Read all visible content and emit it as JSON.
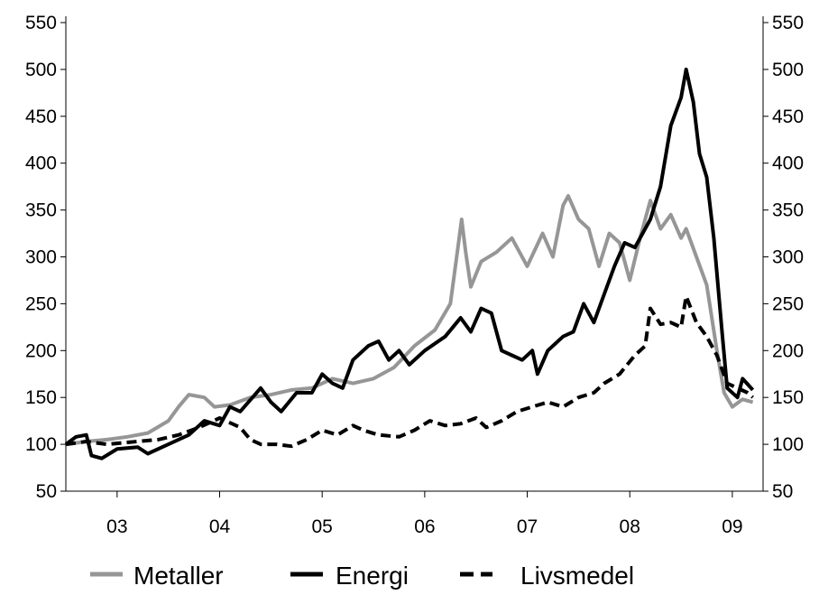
{
  "chart_data": {
    "type": "line",
    "title": "",
    "xlabel": "",
    "ylabel": "",
    "x_tick_labels": [
      "03",
      "04",
      "05",
      "06",
      "07",
      "08",
      "09"
    ],
    "xlim": [
      2002.5,
      2009.3
    ],
    "ylim": [
      50,
      550
    ],
    "yticks": [
      50,
      100,
      150,
      200,
      250,
      300,
      350,
      400,
      450,
      500,
      550
    ],
    "secondary_y_axis": true,
    "grid": false,
    "legend_position": "bottom",
    "series": [
      {
        "name": "Metaller",
        "color": "#969696",
        "style": "solid",
        "points": [
          [
            2002.5,
            100
          ],
          [
            2002.7,
            103
          ],
          [
            2002.9,
            105
          ],
          [
            2003.1,
            108
          ],
          [
            2003.3,
            112
          ],
          [
            2003.5,
            125
          ],
          [
            2003.6,
            140
          ],
          [
            2003.7,
            153
          ],
          [
            2003.85,
            150
          ],
          [
            2003.95,
            140
          ],
          [
            2004.1,
            142
          ],
          [
            2004.3,
            150
          ],
          [
            2004.5,
            153
          ],
          [
            2004.7,
            158
          ],
          [
            2004.9,
            160
          ],
          [
            2005.1,
            170
          ],
          [
            2005.3,
            165
          ],
          [
            2005.5,
            170
          ],
          [
            2005.7,
            182
          ],
          [
            2005.9,
            205
          ],
          [
            2006.1,
            222
          ],
          [
            2006.25,
            250
          ],
          [
            2006.33,
            315
          ],
          [
            2006.36,
            340
          ],
          [
            2006.4,
            305
          ],
          [
            2006.45,
            268
          ],
          [
            2006.55,
            295
          ],
          [
            2006.7,
            305
          ],
          [
            2006.85,
            320
          ],
          [
            2007.0,
            290
          ],
          [
            2007.15,
            325
          ],
          [
            2007.25,
            300
          ],
          [
            2007.35,
            355
          ],
          [
            2007.4,
            365
          ],
          [
            2007.5,
            340
          ],
          [
            2007.6,
            330
          ],
          [
            2007.7,
            290
          ],
          [
            2007.8,
            325
          ],
          [
            2007.9,
            315
          ],
          [
            2008.0,
            275
          ],
          [
            2008.1,
            320
          ],
          [
            2008.2,
            360
          ],
          [
            2008.3,
            330
          ],
          [
            2008.4,
            345
          ],
          [
            2008.5,
            320
          ],
          [
            2008.55,
            330
          ],
          [
            2008.65,
            300
          ],
          [
            2008.75,
            270
          ],
          [
            2008.85,
            200
          ],
          [
            2008.92,
            155
          ],
          [
            2009.0,
            140
          ],
          [
            2009.1,
            148
          ],
          [
            2009.2,
            145
          ]
        ]
      },
      {
        "name": "Energi",
        "color": "#000000",
        "style": "solid",
        "points": [
          [
            2002.5,
            100
          ],
          [
            2002.6,
            108
          ],
          [
            2002.7,
            110
          ],
          [
            2002.75,
            88
          ],
          [
            2002.85,
            85
          ],
          [
            2003.0,
            95
          ],
          [
            2003.2,
            97
          ],
          [
            2003.3,
            90
          ],
          [
            2003.5,
            100
          ],
          [
            2003.7,
            110
          ],
          [
            2003.85,
            125
          ],
          [
            2004.0,
            120
          ],
          [
            2004.1,
            140
          ],
          [
            2004.2,
            135
          ],
          [
            2004.4,
            160
          ],
          [
            2004.5,
            145
          ],
          [
            2004.6,
            135
          ],
          [
            2004.75,
            155
          ],
          [
            2004.9,
            155
          ],
          [
            2005.0,
            175
          ],
          [
            2005.1,
            165
          ],
          [
            2005.2,
            160
          ],
          [
            2005.3,
            190
          ],
          [
            2005.45,
            205
          ],
          [
            2005.55,
            210
          ],
          [
            2005.65,
            190
          ],
          [
            2005.75,
            200
          ],
          [
            2005.85,
            185
          ],
          [
            2006.0,
            200
          ],
          [
            2006.2,
            215
          ],
          [
            2006.35,
            235
          ],
          [
            2006.45,
            220
          ],
          [
            2006.55,
            245
          ],
          [
            2006.65,
            240
          ],
          [
            2006.75,
            200
          ],
          [
            2006.85,
            195
          ],
          [
            2006.95,
            190
          ],
          [
            2007.05,
            200
          ],
          [
            2007.1,
            175
          ],
          [
            2007.2,
            200
          ],
          [
            2007.35,
            215
          ],
          [
            2007.45,
            220
          ],
          [
            2007.55,
            250
          ],
          [
            2007.65,
            230
          ],
          [
            2007.75,
            260
          ],
          [
            2007.85,
            290
          ],
          [
            2007.95,
            315
          ],
          [
            2008.05,
            310
          ],
          [
            2008.2,
            340
          ],
          [
            2008.3,
            375
          ],
          [
            2008.4,
            440
          ],
          [
            2008.5,
            470
          ],
          [
            2008.55,
            500
          ],
          [
            2008.62,
            465
          ],
          [
            2008.68,
            410
          ],
          [
            2008.75,
            385
          ],
          [
            2008.82,
            320
          ],
          [
            2008.9,
            220
          ],
          [
            2008.95,
            160
          ],
          [
            2009.05,
            150
          ],
          [
            2009.1,
            170
          ],
          [
            2009.2,
            158
          ]
        ]
      },
      {
        "name": "Livsmedel",
        "color": "#000000",
        "style": "dashed",
        "points": [
          [
            2002.5,
            100
          ],
          [
            2002.7,
            103
          ],
          [
            2002.9,
            100
          ],
          [
            2003.1,
            102
          ],
          [
            2003.4,
            105
          ],
          [
            2003.6,
            110
          ],
          [
            2003.8,
            118
          ],
          [
            2004.0,
            128
          ],
          [
            2004.2,
            118
          ],
          [
            2004.3,
            105
          ],
          [
            2004.4,
            100
          ],
          [
            2004.55,
            100
          ],
          [
            2004.7,
            98
          ],
          [
            2004.85,
            105
          ],
          [
            2005.0,
            115
          ],
          [
            2005.15,
            110
          ],
          [
            2005.3,
            120
          ],
          [
            2005.4,
            115
          ],
          [
            2005.55,
            110
          ],
          [
            2005.75,
            108
          ],
          [
            2005.9,
            115
          ],
          [
            2006.05,
            125
          ],
          [
            2006.2,
            120
          ],
          [
            2006.35,
            122
          ],
          [
            2006.5,
            128
          ],
          [
            2006.6,
            118
          ],
          [
            2006.75,
            125
          ],
          [
            2006.9,
            135
          ],
          [
            2007.05,
            140
          ],
          [
            2007.2,
            145
          ],
          [
            2007.35,
            140
          ],
          [
            2007.5,
            150
          ],
          [
            2007.65,
            155
          ],
          [
            2007.75,
            165
          ],
          [
            2007.9,
            175
          ],
          [
            2008.05,
            195
          ],
          [
            2008.15,
            205
          ],
          [
            2008.2,
            245
          ],
          [
            2008.3,
            228
          ],
          [
            2008.4,
            230
          ],
          [
            2008.5,
            225
          ],
          [
            2008.55,
            258
          ],
          [
            2008.65,
            230
          ],
          [
            2008.75,
            215
          ],
          [
            2008.85,
            195
          ],
          [
            2008.95,
            165
          ],
          [
            2009.05,
            160
          ],
          [
            2009.15,
            155
          ],
          [
            2009.2,
            150
          ]
        ]
      }
    ]
  }
}
